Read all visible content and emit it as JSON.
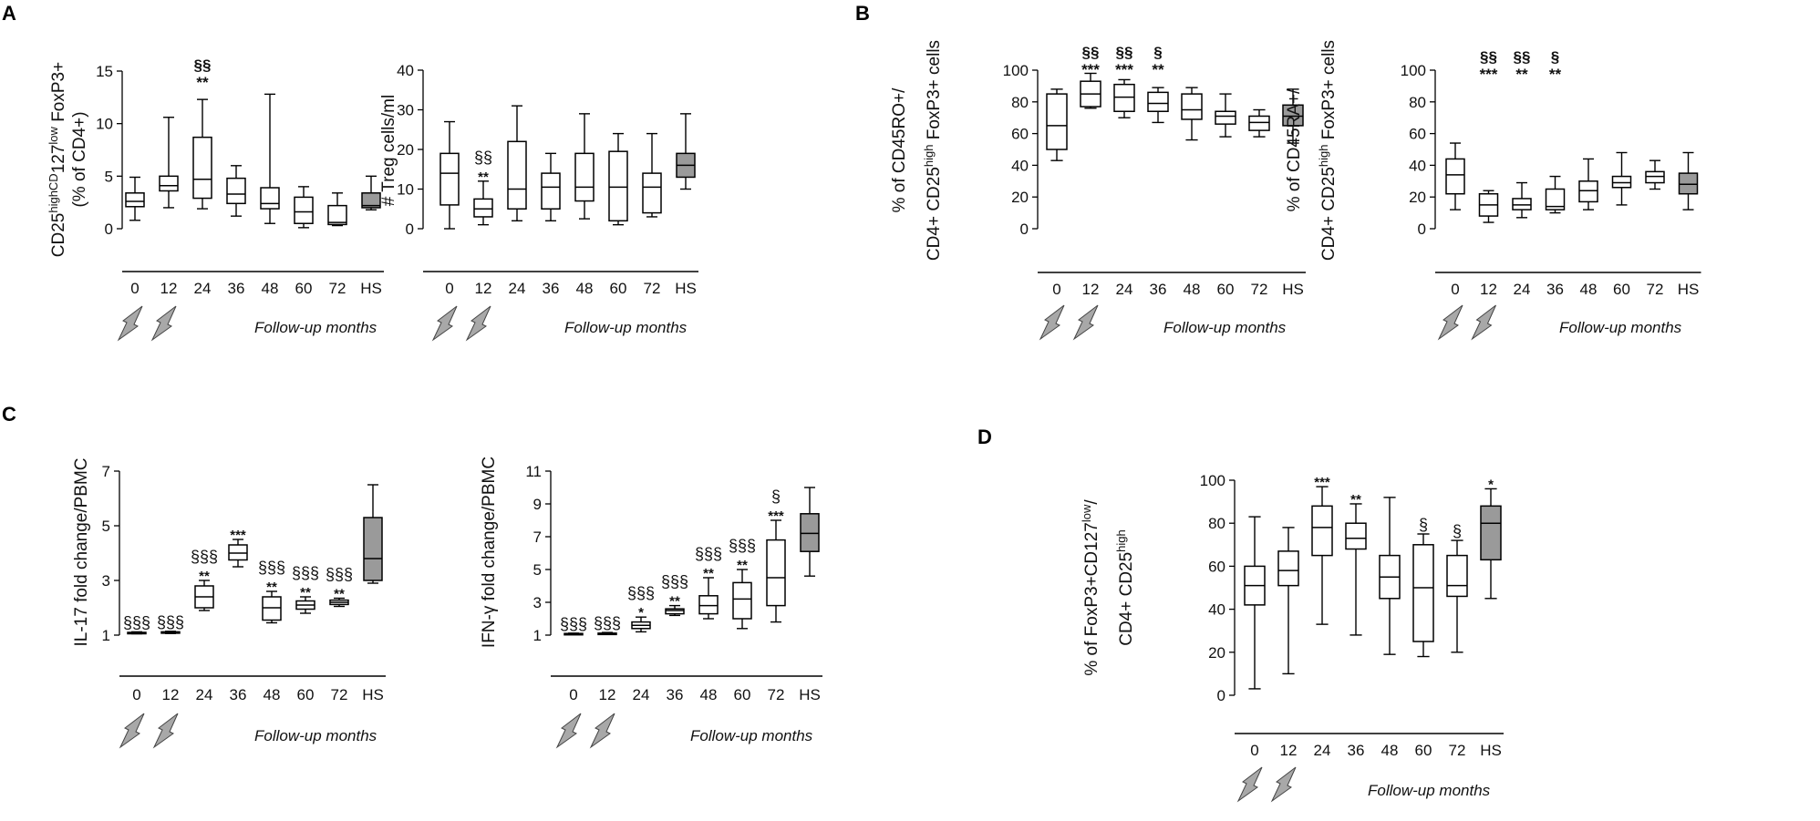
{
  "figure": {
    "panel_labels": [
      "A",
      "B",
      "C",
      "D"
    ],
    "x_label": "Follow-up  months",
    "categories": [
      "0",
      "12",
      "24",
      "36",
      "48",
      "60",
      "72",
      "HS"
    ],
    "box_fill": "#ffffff",
    "hs_fill": "#9a9a9a",
    "bolt_fill": "#a8a8a8"
  },
  "chart_data": [
    {
      "id": "A1",
      "panel": "A",
      "type": "boxplot",
      "ylabel_lines": [
        "CD25^highCD127^low FoxP3+",
        "(% of CD4+)"
      ],
      "xlabel": "Follow-up  months",
      "ylim": [
        0,
        15
      ],
      "yticks": [
        0,
        5,
        10,
        15
      ],
      "categories": [
        "0",
        "12",
        "24",
        "36",
        "48",
        "60",
        "72",
        "HS"
      ],
      "boxes": [
        {
          "min": 0.8,
          "q1": 2.1,
          "median": 2.6,
          "q3": 3.4,
          "max": 4.9
        },
        {
          "min": 2.0,
          "q1": 3.6,
          "median": 4.1,
          "q3": 5.0,
          "max": 10.6
        },
        {
          "min": 1.9,
          "q1": 2.9,
          "median": 4.7,
          "q3": 8.7,
          "max": 12.3
        },
        {
          "min": 1.2,
          "q1": 2.4,
          "median": 3.3,
          "q3": 4.8,
          "max": 6.0
        },
        {
          "min": 0.5,
          "q1": 1.9,
          "median": 2.4,
          "q3": 3.9,
          "max": 12.8
        },
        {
          "min": 0.1,
          "q1": 0.5,
          "median": 1.6,
          "q3": 3.0,
          "max": 4.0
        },
        {
          "min": 0.3,
          "q1": 0.4,
          "median": 0.6,
          "q3": 2.2,
          "max": 3.4
        },
        {
          "min": 1.8,
          "q1": 2.0,
          "median": 2.2,
          "q3": 3.4,
          "max": 5.0
        }
      ],
      "annotations": [
        {
          "category": "24",
          "lines": [
            "§§",
            "**"
          ],
          "style": "bold"
        }
      ]
    },
    {
      "id": "A2",
      "panel": "A",
      "type": "boxplot",
      "ylabel_lines": [
        "# Treg cells/ml"
      ],
      "xlabel": "Follow-up  months",
      "ylim": [
        0,
        40
      ],
      "yticks": [
        0,
        10,
        20,
        30,
        40
      ],
      "categories": [
        "0",
        "12",
        "24",
        "36",
        "48",
        "60",
        "72",
        "HS"
      ],
      "boxes": [
        {
          "min": 0.0,
          "q1": 6.0,
          "median": 14.0,
          "q3": 19.0,
          "max": 27.0
        },
        {
          "min": 1.0,
          "q1": 3.0,
          "median": 5.0,
          "q3": 7.5,
          "max": 12.0
        },
        {
          "min": 2.0,
          "q1": 5.0,
          "median": 10.0,
          "q3": 22.0,
          "max": 31.0
        },
        {
          "min": 2.0,
          "q1": 5.0,
          "median": 10.5,
          "q3": 14.0,
          "max": 19.0
        },
        {
          "min": 2.5,
          "q1": 7.0,
          "median": 10.5,
          "q3": 19.0,
          "max": 29.0
        },
        {
          "min": 1.0,
          "q1": 2.0,
          "median": 10.5,
          "q3": 19.5,
          "max": 24.0
        },
        {
          "min": 3.0,
          "q1": 4.0,
          "median": 10.5,
          "q3": 14.0,
          "max": 24.0
        },
        {
          "min": 10.0,
          "q1": 13.0,
          "median": 16.0,
          "q3": 19.0,
          "max": 29.0
        }
      ],
      "annotations": [
        {
          "category": "12",
          "lines": [
            "§§",
            "**"
          ],
          "style": "mixed"
        }
      ]
    },
    {
      "id": "B1",
      "panel": "B",
      "type": "boxplot",
      "ylabel_lines": [
        "% of CD45RO+/",
        "CD4+ CD25^high FoxP3+ cells"
      ],
      "xlabel": "Follow-up  months",
      "ylim": [
        0,
        100
      ],
      "yticks": [
        0,
        20,
        40,
        60,
        80,
        100
      ],
      "categories": [
        "0",
        "12",
        "24",
        "36",
        "48",
        "60",
        "72",
        "HS"
      ],
      "boxes": [
        {
          "min": 43,
          "q1": 50,
          "median": 65,
          "q3": 85,
          "max": 88
        },
        {
          "min": 76,
          "q1": 77,
          "median": 85,
          "q3": 93,
          "max": 98
        },
        {
          "min": 70,
          "q1": 74,
          "median": 83,
          "q3": 91,
          "max": 94
        },
        {
          "min": 67,
          "q1": 74,
          "median": 79,
          "q3": 86,
          "max": 89
        },
        {
          "min": 56,
          "q1": 69,
          "median": 75,
          "q3": 85,
          "max": 89
        },
        {
          "min": 58,
          "q1": 66,
          "median": 71,
          "q3": 74,
          "max": 85
        },
        {
          "min": 58,
          "q1": 62,
          "median": 67,
          "q3": 71,
          "max": 75
        },
        {
          "min": 54,
          "q1": 65,
          "median": 71,
          "q3": 78,
          "max": 88
        }
      ],
      "annotations": [
        {
          "category": "12",
          "lines": [
            "§§",
            "***"
          ],
          "style": "bold"
        },
        {
          "category": "24",
          "lines": [
            "§§",
            "***"
          ],
          "style": "bold"
        },
        {
          "category": "36",
          "lines": [
            "§",
            "**"
          ],
          "style": "bold"
        }
      ]
    },
    {
      "id": "B2",
      "panel": "B",
      "type": "boxplot",
      "ylabel_lines": [
        "% of CD45RA+/",
        "CD4+ CD25^high FoxP3+ cells"
      ],
      "xlabel": "Follow-up  months",
      "ylim": [
        0,
        100
      ],
      "yticks": [
        0,
        20,
        40,
        60,
        80,
        100
      ],
      "categories": [
        "0",
        "12",
        "24",
        "36",
        "48",
        "60",
        "72",
        "HS"
      ],
      "boxes": [
        {
          "min": 12,
          "q1": 22,
          "median": 34,
          "q3": 44,
          "max": 54
        },
        {
          "min": 4,
          "q1": 8,
          "median": 15,
          "q3": 22,
          "max": 24
        },
        {
          "min": 7,
          "q1": 12,
          "median": 15,
          "q3": 19,
          "max": 29
        },
        {
          "min": 10,
          "q1": 12,
          "median": 14,
          "q3": 25,
          "max": 33
        },
        {
          "min": 12,
          "q1": 17,
          "median": 24,
          "q3": 30,
          "max": 44
        },
        {
          "min": 15,
          "q1": 26,
          "median": 29,
          "q3": 33,
          "max": 48
        },
        {
          "min": 25,
          "q1": 29,
          "median": 33,
          "q3": 36,
          "max": 43
        },
        {
          "min": 12,
          "q1": 22,
          "median": 28,
          "q3": 35,
          "max": 48
        }
      ],
      "annotations": [
        {
          "category": "12",
          "lines": [
            "§§",
            "***"
          ],
          "style": "bold"
        },
        {
          "category": "24",
          "lines": [
            "§§",
            "**"
          ],
          "style": "bold"
        },
        {
          "category": "36",
          "lines": [
            "§",
            "**"
          ],
          "style": "bold"
        }
      ]
    },
    {
      "id": "C1",
      "panel": "C",
      "type": "boxplot",
      "ylabel_lines": [
        "IL-17 fold change/PBMC"
      ],
      "xlabel": "Follow-up  months",
      "ylim": [
        1,
        7
      ],
      "yticks": [
        1,
        3,
        5,
        7
      ],
      "categories": [
        "0",
        "12",
        "24",
        "36",
        "48",
        "60",
        "72",
        "HS"
      ],
      "boxes": [
        {
          "min": 1.05,
          "q1": 1.07,
          "median": 1.08,
          "q3": 1.1,
          "max": 1.12
        },
        {
          "min": 1.06,
          "q1": 1.08,
          "median": 1.1,
          "q3": 1.12,
          "max": 1.14
        },
        {
          "min": 1.9,
          "q1": 2.0,
          "median": 2.4,
          "q3": 2.8,
          "max": 3.0
        },
        {
          "min": 3.5,
          "q1": 3.75,
          "median": 4.0,
          "q3": 4.3,
          "max": 4.5
        },
        {
          "min": 1.45,
          "q1": 1.55,
          "median": 2.0,
          "q3": 2.4,
          "max": 2.6
        },
        {
          "min": 1.8,
          "q1": 1.95,
          "median": 2.1,
          "q3": 2.25,
          "max": 2.4
        },
        {
          "min": 2.05,
          "q1": 2.12,
          "median": 2.2,
          "q3": 2.28,
          "max": 2.35
        },
        {
          "min": 2.9,
          "q1": 3.0,
          "median": 3.8,
          "q3": 5.3,
          "max": 6.5
        }
      ],
      "annotations": [
        {
          "category": "0",
          "lines": [
            "§§§"
          ],
          "style": "mixed"
        },
        {
          "category": "12",
          "lines": [
            "§§§"
          ],
          "style": "mixed"
        },
        {
          "category": "24",
          "lines": [
            "§§§",
            "**"
          ],
          "style": "mixed"
        },
        {
          "category": "36",
          "lines": [
            "***"
          ],
          "style": "mixed"
        },
        {
          "category": "48",
          "lines": [
            "§§§",
            "**"
          ],
          "style": "mixed"
        },
        {
          "category": "60",
          "lines": [
            "§§§",
            "**"
          ],
          "style": "mixed"
        },
        {
          "category": "72",
          "lines": [
            "§§§",
            "**"
          ],
          "style": "mixed"
        }
      ]
    },
    {
      "id": "C2",
      "panel": "C",
      "type": "boxplot",
      "ylabel_lines": [
        "IFN-γ fold change/PBMC"
      ],
      "xlabel": "Follow-up  months",
      "ylim": [
        1,
        11
      ],
      "yticks": [
        1,
        3,
        5,
        7,
        9,
        11
      ],
      "categories": [
        "0",
        "12",
        "24",
        "36",
        "48",
        "60",
        "72",
        "HS"
      ],
      "boxes": [
        {
          "min": 1.05,
          "q1": 1.07,
          "median": 1.08,
          "q3": 1.1,
          "max": 1.12
        },
        {
          "min": 1.06,
          "q1": 1.08,
          "median": 1.1,
          "q3": 1.12,
          "max": 1.16
        },
        {
          "min": 1.2,
          "q1": 1.4,
          "median": 1.6,
          "q3": 1.8,
          "max": 2.1
        },
        {
          "min": 2.2,
          "q1": 2.3,
          "median": 2.5,
          "q3": 2.6,
          "max": 2.8
        },
        {
          "min": 2.0,
          "q1": 2.3,
          "median": 2.8,
          "q3": 3.4,
          "max": 4.5
        },
        {
          "min": 1.4,
          "q1": 2.0,
          "median": 3.2,
          "q3": 4.2,
          "max": 5.0
        },
        {
          "min": 1.8,
          "q1": 2.8,
          "median": 4.5,
          "q3": 6.8,
          "max": 8.0
        },
        {
          "min": 4.6,
          "q1": 6.1,
          "median": 7.2,
          "q3": 8.4,
          "max": 10.0
        }
      ],
      "annotations": [
        {
          "category": "0",
          "lines": [
            "§§§"
          ],
          "style": "mixed"
        },
        {
          "category": "12",
          "lines": [
            "§§§"
          ],
          "style": "mixed"
        },
        {
          "category": "24",
          "lines": [
            "§§§",
            "*"
          ],
          "style": "mixed"
        },
        {
          "category": "36",
          "lines": [
            "§§§",
            "**"
          ],
          "style": "mixed"
        },
        {
          "category": "48",
          "lines": [
            "§§§",
            "**"
          ],
          "style": "mixed"
        },
        {
          "category": "60",
          "lines": [
            "§§§",
            "**"
          ],
          "style": "mixed"
        },
        {
          "category": "72",
          "lines": [
            "§",
            "***"
          ],
          "style": "mixed"
        }
      ]
    },
    {
      "id": "D1",
      "panel": "D",
      "type": "boxplot",
      "ylabel_lines": [
        "% of FoxP3+CD127^low/",
        "CD4+ CD25^high"
      ],
      "xlabel": "Follow-up  months",
      "ylim": [
        0,
        100
      ],
      "yticks": [
        0,
        20,
        40,
        60,
        80,
        100
      ],
      "categories": [
        "0",
        "12",
        "24",
        "36",
        "48",
        "60",
        "72",
        "HS"
      ],
      "boxes": [
        {
          "min": 3,
          "q1": 42,
          "median": 51,
          "q3": 60,
          "max": 83
        },
        {
          "min": 10,
          "q1": 51,
          "median": 58,
          "q3": 67,
          "max": 78
        },
        {
          "min": 33,
          "q1": 65,
          "median": 78,
          "q3": 88,
          "max": 97
        },
        {
          "min": 28,
          "q1": 68,
          "median": 73,
          "q3": 80,
          "max": 89
        },
        {
          "min": 19,
          "q1": 45,
          "median": 55,
          "q3": 65,
          "max": 92
        },
        {
          "min": 18,
          "q1": 25,
          "median": 50,
          "q3": 70,
          "max": 75
        },
        {
          "min": 20,
          "q1": 46,
          "median": 51,
          "q3": 65,
          "max": 72
        },
        {
          "min": 45,
          "q1": 63,
          "median": 80,
          "q3": 88,
          "max": 96
        }
      ],
      "annotations": [
        {
          "category": "24",
          "lines": [
            "***"
          ],
          "style": "mixed"
        },
        {
          "category": "36",
          "lines": [
            "**"
          ],
          "style": "mixed"
        },
        {
          "category": "60",
          "lines": [
            "§"
          ],
          "style": "mixed"
        },
        {
          "category": "72",
          "lines": [
            "§"
          ],
          "style": "mixed"
        },
        {
          "category": "HS",
          "lines": [
            "*"
          ],
          "style": "mixed"
        }
      ]
    }
  ]
}
